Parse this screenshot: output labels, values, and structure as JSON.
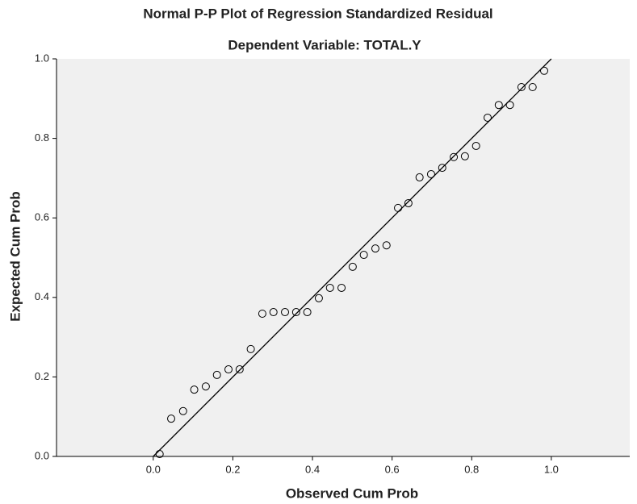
{
  "chart_data": {
    "type": "scatter",
    "title": "Normal P-P Plot of Regression Standardized Residual",
    "subtitle": "Dependent Variable: TOTAL.Y",
    "x_label": "Observed Cum Prob",
    "y_label": "Expected Cum Prob",
    "x": [
      0.016,
      0.045,
      0.075,
      0.103,
      0.132,
      0.16,
      0.189,
      0.217,
      0.245,
      0.274,
      0.302,
      0.331,
      0.359,
      0.387,
      0.416,
      0.444,
      0.473,
      0.501,
      0.529,
      0.558,
      0.586,
      0.615,
      0.641,
      0.669,
      0.698,
      0.726,
      0.755,
      0.783,
      0.811,
      0.84,
      0.868,
      0.896,
      0.925,
      0.953,
      0.982
    ],
    "values": [
      0.006,
      0.095,
      0.114,
      0.168,
      0.176,
      0.205,
      0.219,
      0.219,
      0.27,
      0.359,
      0.363,
      0.363,
      0.363,
      0.363,
      0.398,
      0.424,
      0.424,
      0.477,
      0.507,
      0.523,
      0.531,
      0.625,
      0.637,
      0.702,
      0.71,
      0.726,
      0.753,
      0.755,
      0.781,
      0.852,
      0.884,
      0.884,
      0.929,
      0.929,
      0.97
    ],
    "color": "#000000",
    "xlim": [
      -0.243,
      1.197
    ],
    "ylim": [
      0,
      1
    ],
    "xticks": [
      {
        "value": 0,
        "label": "0.0"
      },
      0.2,
      0.4,
      0.6,
      0.8,
      {
        "value": 1,
        "label": "1.0"
      }
    ],
    "yticks": [
      {
        "value": 0,
        "label": "0.0"
      },
      0.2,
      0.4,
      0.6,
      0.8,
      {
        "value": 1,
        "label": "1.0"
      }
    ],
    "grid": false,
    "reference_line": true
  }
}
